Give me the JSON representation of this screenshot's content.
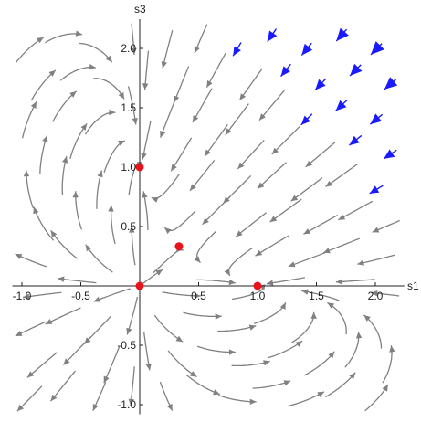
{
  "chart_data": {
    "type": "scatter",
    "subtype": "stream-plot",
    "title": "",
    "xlabel": "s1",
    "ylabel": "s3",
    "xlim": [
      -1.05,
      2.2
    ],
    "ylim": [
      -1.05,
      2.2
    ],
    "x_ticks": [
      "-1.0",
      "-0.5",
      "0.5",
      "1.0",
      "1.5",
      "2.0"
    ],
    "y_ticks": [
      "-1.0",
      "-0.5",
      "0.5",
      "1.0",
      "1.5",
      "2.0"
    ],
    "grid": false,
    "stream_color": "#808080",
    "fast_stream_color": "#1a1aff",
    "fixed_point_color": "#e8141b",
    "fixed_points": [
      {
        "x": 0,
        "y": 0
      },
      {
        "x": 1,
        "y": 0
      },
      {
        "x": 0,
        "y": 1
      },
      {
        "x": 0.333,
        "y": 0.333
      }
    ]
  }
}
